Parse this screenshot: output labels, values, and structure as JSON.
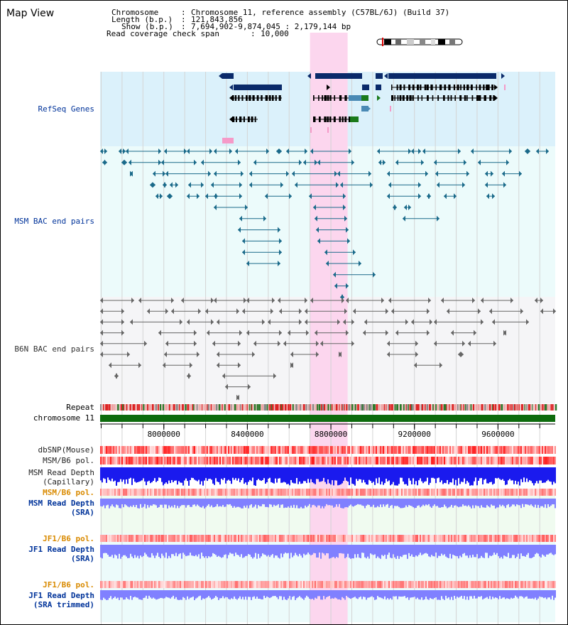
{
  "title": "Map View",
  "info": {
    "chromosome_key": "Chromosome",
    "chromosome_val": "Chromosome 11, reference assembly (C57BL/6J) (Build 37)",
    "length_key": "Length (b.p.)",
    "length_val": "121,843,856",
    "show_key": "Show (b.p.)",
    "show_val": "7,694,902-9,874,045 : 2,179,144 bp",
    "span_key": "Read coverage check span",
    "span_val": "10,000"
  },
  "tracks": {
    "refseq": "RefSeq Genes",
    "msm_bac": "MSM BAC end pairs",
    "b6n_bac": "B6N BAC end pairs",
    "repeat": "Repeat",
    "chromosome": "chromosome 11",
    "dbsnp": "dbSNP(Mouse)",
    "msm_b6_pol_1": "MSM/B6 pol.",
    "msm_depth_cap_1": "MSM Read Depth",
    "msm_depth_cap_2": "(Capillary)",
    "msm_b6_pol_2": "MSM/B6 pol.",
    "msm_depth_sra_1": "MSM Read Depth",
    "msm_depth_sra_2": "(SRA)",
    "jf1_b6_pol_1": "JF1/B6 pol.",
    "jf1_depth_sra_1": "JF1 Read Depth",
    "jf1_depth_sra_2": "(SRA)",
    "jf1_b6_pol_2": "JF1/B6 pol.",
    "jf1_depth_trim_1": "JF1 Read Depth",
    "jf1_depth_trim_2": "(SRA trimmed)"
  },
  "axis": {
    "start_bp": 7694902,
    "end_bp": 9874045,
    "ticks": [
      {
        "pos": 8000000,
        "label": "8000000"
      },
      {
        "pos": 8400000,
        "label": "8400000"
      },
      {
        "pos": 8800000,
        "label": "8800000"
      },
      {
        "pos": 9200000,
        "label": "9200000"
      },
      {
        "pos": 9600000,
        "label": "9600000"
      }
    ],
    "minor_step": 100000
  },
  "highlight_bp": [
    8700000,
    8880000
  ],
  "colors": {
    "refseq_bg": "#dbf1fb",
    "bac_bg": "#ecfbfb",
    "b6n_bg": "#f5f5f7",
    "highlight": "#fcd6ee",
    "gene_dark": "#0a2a6a",
    "gene_mid": "#4a8ab5",
    "gene_green": "#1a7a1a",
    "msm_bac": "#1a6a8a",
    "b6n_bac": "#666666",
    "chromosome_bar": "#0d6b0d",
    "label_blue": "#00339a",
    "label_orange": "#d98a00",
    "depth_blue": "#1a1aee",
    "depth_light": "#8080ff"
  }
}
